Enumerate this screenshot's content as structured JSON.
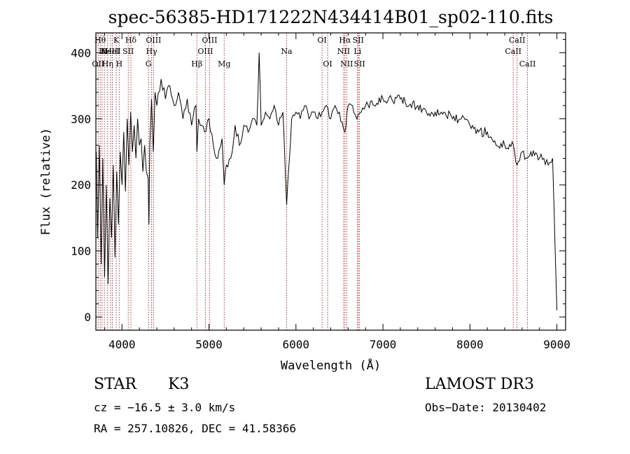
{
  "chart_data": {
    "type": "line",
    "title": "spec-56385-HD171222N434414B01_sp02-110.fits",
    "xlabel": "Wavelength (Å)",
    "ylabel": "Flux (relative)",
    "xlim": [
      3700,
      9100
    ],
    "ylim": [
      -20,
      430
    ],
    "x_ticks": [
      4000,
      5000,
      6000,
      7000,
      8000,
      9000
    ],
    "x_tick_labels": [
      "4000",
      "5000",
      "6000",
      "7000",
      "8000",
      "9000"
    ],
    "y_ticks": [
      0,
      100,
      200,
      300,
      400
    ],
    "y_tick_labels": [
      "0",
      "100",
      "200",
      "300",
      "400"
    ],
    "series": [
      {
        "color": "#000000",
        "x": [
          3705,
          3720,
          3740,
          3760,
          3780,
          3800,
          3820,
          3840,
          3860,
          3880,
          3900,
          3920,
          3940,
          3960,
          3980,
          4000,
          4020,
          4040,
          4060,
          4080,
          4100,
          4120,
          4140,
          4160,
          4180,
          4200,
          4220,
          4240,
          4260,
          4280,
          4300,
          4310,
          4320,
          4340,
          4360,
          4380,
          4400,
          4450,
          4500,
          4550,
          4600,
          4650,
          4700,
          4750,
          4800,
          4850,
          4861,
          4880,
          4900,
          4950,
          5000,
          5050,
          5100,
          5150,
          5175,
          5200,
          5250,
          5300,
          5350,
          5400,
          5450,
          5500,
          5550,
          5577,
          5600,
          5650,
          5700,
          5750,
          5800,
          5850,
          5893,
          5950,
          6000,
          6050,
          6100,
          6150,
          6200,
          6250,
          6300,
          6350,
          6400,
          6450,
          6500,
          6563,
          6600,
          6650,
          6700,
          6750,
          6800,
          6900,
          7000,
          7100,
          7200,
          7300,
          7400,
          7500,
          7600,
          7700,
          7800,
          7900,
          8000,
          8100,
          8200,
          8300,
          8400,
          8500,
          8542,
          8600,
          8662,
          8700,
          8800,
          8850,
          8900,
          8950,
          8980,
          9000
        ],
        "y": [
          250,
          120,
          260,
          80,
          240,
          60,
          200,
          50,
          180,
          120,
          230,
          90,
          220,
          140,
          250,
          200,
          280,
          190,
          300,
          230,
          310,
          250,
          290,
          240,
          300,
          260,
          270,
          220,
          260,
          220,
          210,
          140,
          260,
          330,
          250,
          340,
          320,
          360,
          330,
          350,
          320,
          340,
          300,
          330,
          290,
          320,
          250,
          300,
          290,
          280,
          300,
          260,
          240,
          270,
          200,
          230,
          240,
          290,
          260,
          290,
          280,
          300,
          290,
          400,
          290,
          310,
          300,
          320,
          290,
          310,
          170,
          300,
          310,
          300,
          320,
          300,
          310,
          300,
          310,
          320,
          300,
          320,
          310,
          280,
          320,
          320,
          300,
          310,
          320,
          320,
          330,
          330,
          330,
          320,
          320,
          310,
          310,
          310,
          300,
          300,
          290,
          280,
          280,
          260,
          260,
          260,
          230,
          250,
          240,
          250,
          240,
          240,
          230,
          240,
          100,
          10
        ]
      }
    ],
    "lines": [
      {
        "w": 3726,
        "label": "OII",
        "row": 3
      },
      {
        "w": 3750,
        "label": "Hθ",
        "row": 1
      },
      {
        "w": 3771,
        "label": "H",
        "row": 2
      },
      {
        "w": 3798,
        "label": "H",
        "row": 2
      },
      {
        "w": 3835,
        "label": "Hη",
        "row": 3
      },
      {
        "w": 3869,
        "label": "NeIII",
        "row": 2
      },
      {
        "w": 3889,
        "label": "HeI",
        "row": 2
      },
      {
        "w": 3934,
        "label": "K",
        "row": 1
      },
      {
        "w": 3968,
        "label": "H",
        "row": 3
      },
      {
        "w": 4072,
        "label": "SII",
        "row": 2
      },
      {
        "w": 4102,
        "label": "Hδ",
        "row": 1
      },
      {
        "w": 4305,
        "label": "G",
        "row": 3
      },
      {
        "w": 4340,
        "label": "Hγ",
        "row": 2
      },
      {
        "w": 4363,
        "label": "OIII",
        "row": 1
      },
      {
        "w": 4861,
        "label": "Hβ",
        "row": 3
      },
      {
        "w": 4959,
        "label": "OIII",
        "row": 2
      },
      {
        "w": 5007,
        "label": "OIII",
        "row": 1
      },
      {
        "w": 5175,
        "label": "Mg",
        "row": 3
      },
      {
        "w": 5893,
        "label": "Na",
        "row": 2
      },
      {
        "w": 6300,
        "label": "OI",
        "row": 1
      },
      {
        "w": 6364,
        "label": "OI",
        "row": 3
      },
      {
        "w": 6548,
        "label": "NII",
        "row": 2
      },
      {
        "w": 6563,
        "label": "Hα",
        "row": 1
      },
      {
        "w": 6583,
        "label": "NII",
        "row": 3
      },
      {
        "w": 6708,
        "label": "Li",
        "row": 2
      },
      {
        "w": 6716,
        "label": "SII",
        "row": 1
      },
      {
        "w": 6731,
        "label": "SII",
        "row": 3
      },
      {
        "w": 8498,
        "label": "CaII",
        "row": 2
      },
      {
        "w": 8542,
        "label": "CaII",
        "row": 1
      },
      {
        "w": 8662,
        "label": "CaII",
        "row": 3
      }
    ]
  },
  "info": {
    "class_label": "STAR",
    "subclass": "K3",
    "survey": "LAMOST DR3",
    "cz": "cz = −16.5 ± 3.0 km/s",
    "obs_date": "Obs−Date: 20130402",
    "coords": "RA = 257.10826, DEC =  41.58366"
  }
}
